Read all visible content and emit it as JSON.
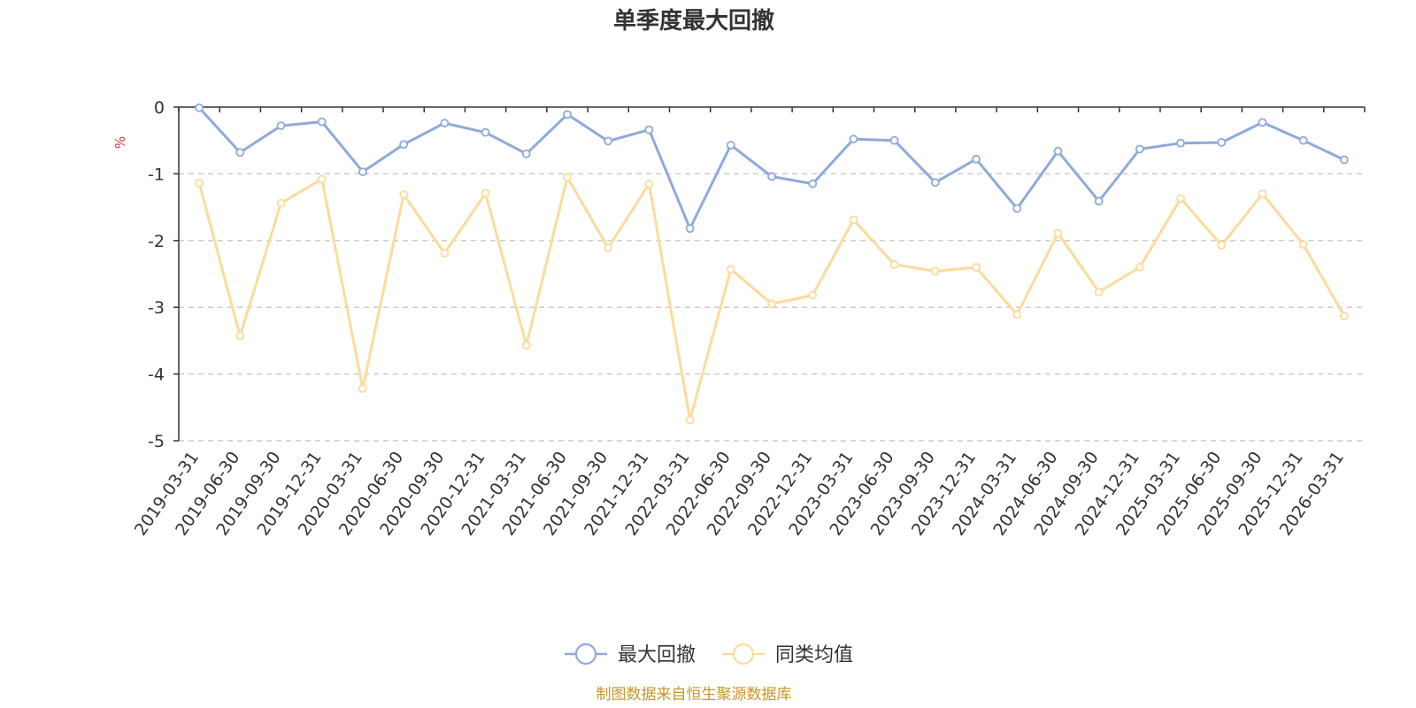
{
  "chart_data": {
    "type": "line",
    "title": "单季度最大回撤",
    "ylabel": "%",
    "ylim": [
      -5,
      0
    ],
    "yticks": [
      0,
      -1,
      -2,
      -3,
      -4,
      -5
    ],
    "grid": true,
    "legend_position": "bottom-center",
    "x": [
      "2019-03-31",
      "2019-06-30",
      "2019-09-30",
      "2019-12-31",
      "2020-03-31",
      "2020-06-30",
      "2020-09-30",
      "2020-12-31",
      "2021-03-31",
      "2021-06-30",
      "2021-09-30",
      "2021-12-31",
      "2022-03-31",
      "2022-06-30",
      "2022-09-30",
      "2022-12-31",
      "2023-03-31",
      "2023-06-30",
      "2023-09-30",
      "2023-12-31",
      "2024-03-31",
      "2024-06-30",
      "2024-09-30",
      "2024-12-31",
      "2025-03-31",
      "2025-06-30",
      "2025-09-30",
      "2025-12-31",
      "2026-03-31"
    ],
    "series": [
      {
        "name": "最大回撤",
        "color": "#8eaadb",
        "values": [
          -0.01,
          -0.68,
          -0.28,
          -0.22,
          -0.97,
          -0.56,
          -0.24,
          -0.38,
          -0.7,
          -0.11,
          -0.51,
          -0.34,
          -1.82,
          -0.57,
          -1.04,
          -1.15,
          -0.48,
          -0.5,
          -1.13,
          -0.78,
          -1.52,
          -0.66,
          -1.41,
          -0.63,
          -0.54,
          -0.53,
          -0.23,
          -0.5,
          -0.79
        ]
      },
      {
        "name": "同类均值",
        "color": "#fcdb9c",
        "values": [
          -1.14,
          -3.43,
          -1.44,
          -1.08,
          -4.22,
          -1.31,
          -2.19,
          -1.29,
          -3.57,
          -1.05,
          -2.11,
          -1.15,
          -4.69,
          -2.43,
          -2.95,
          -2.82,
          -1.69,
          -2.36,
          -2.46,
          -2.4,
          -3.11,
          -1.89,
          -2.77,
          -2.4,
          -1.37,
          -2.07,
          -1.3,
          -2.06,
          -3.13
        ]
      }
    ]
  },
  "source_text": "制图数据来自恒生聚源数据库",
  "colors": {
    "source": "#c8962a",
    "unit": "#e03030",
    "grid": "#cccccc",
    "axis": "#333333"
  }
}
